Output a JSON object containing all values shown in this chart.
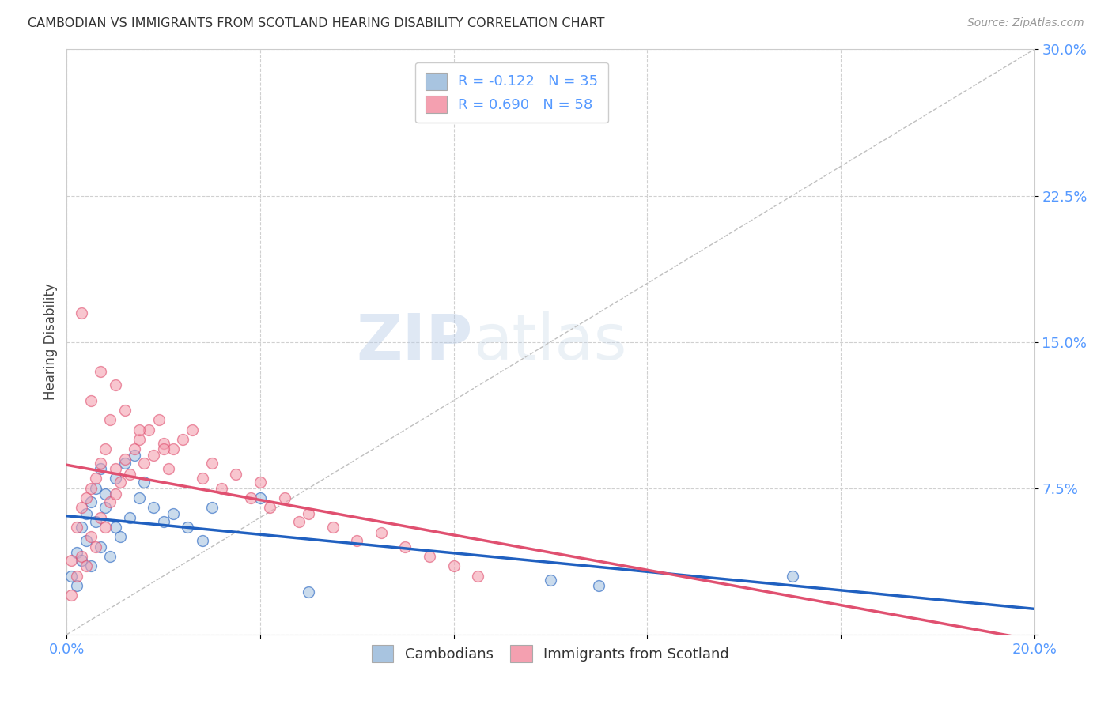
{
  "title": "CAMBODIAN VS IMMIGRANTS FROM SCOTLAND HEARING DISABILITY CORRELATION CHART",
  "source": "Source: ZipAtlas.com",
  "ylabel": "Hearing Disability",
  "xlim": [
    0.0,
    0.2
  ],
  "ylim": [
    0.0,
    0.3
  ],
  "xticks": [
    0.0,
    0.04,
    0.08,
    0.12,
    0.16,
    0.2
  ],
  "yticks": [
    0.0,
    0.075,
    0.15,
    0.225,
    0.3
  ],
  "ytick_labels": [
    "",
    "7.5%",
    "15.0%",
    "22.5%",
    "30.0%"
  ],
  "xtick_labels": [
    "0.0%",
    "",
    "",
    "",
    "",
    "20.0%"
  ],
  "series1_label": "Cambodians",
  "series2_label": "Immigrants from Scotland",
  "series1_R": -0.122,
  "series1_N": 35,
  "series2_R": 0.69,
  "series2_N": 58,
  "series1_color": "#a8c4e0",
  "series2_color": "#f4a0b0",
  "series1_line_color": "#2060c0",
  "series2_line_color": "#e05070",
  "diagonal_color": "#c0c0c0",
  "background_color": "#ffffff",
  "grid_color": "#d0d0d0",
  "watermark_zip": "ZIP",
  "watermark_atlas": "atlas",
  "series1_x": [
    0.001,
    0.002,
    0.002,
    0.003,
    0.003,
    0.004,
    0.004,
    0.005,
    0.005,
    0.006,
    0.006,
    0.007,
    0.007,
    0.008,
    0.008,
    0.009,
    0.01,
    0.01,
    0.011,
    0.012,
    0.013,
    0.014,
    0.015,
    0.016,
    0.018,
    0.02,
    0.022,
    0.025,
    0.028,
    0.03,
    0.04,
    0.05,
    0.1,
    0.15,
    0.11
  ],
  "series1_y": [
    0.03,
    0.025,
    0.042,
    0.038,
    0.055,
    0.048,
    0.062,
    0.035,
    0.068,
    0.058,
    0.075,
    0.045,
    0.085,
    0.065,
    0.072,
    0.04,
    0.08,
    0.055,
    0.05,
    0.088,
    0.06,
    0.092,
    0.07,
    0.078,
    0.065,
    0.058,
    0.062,
    0.055,
    0.048,
    0.065,
    0.07,
    0.022,
    0.028,
    0.03,
    0.025
  ],
  "series2_x": [
    0.001,
    0.001,
    0.002,
    0.002,
    0.003,
    0.003,
    0.004,
    0.004,
    0.005,
    0.005,
    0.006,
    0.006,
    0.007,
    0.007,
    0.008,
    0.008,
    0.009,
    0.01,
    0.01,
    0.011,
    0.012,
    0.013,
    0.014,
    0.015,
    0.016,
    0.017,
    0.018,
    0.019,
    0.02,
    0.021,
    0.022,
    0.024,
    0.026,
    0.028,
    0.03,
    0.032,
    0.035,
    0.038,
    0.04,
    0.042,
    0.045,
    0.048,
    0.05,
    0.055,
    0.06,
    0.065,
    0.07,
    0.075,
    0.08,
    0.085,
    0.003,
    0.005,
    0.007,
    0.009,
    0.01,
    0.012,
    0.015,
    0.02
  ],
  "series2_y": [
    0.02,
    0.038,
    0.03,
    0.055,
    0.04,
    0.065,
    0.035,
    0.07,
    0.05,
    0.075,
    0.045,
    0.08,
    0.06,
    0.088,
    0.055,
    0.095,
    0.068,
    0.072,
    0.085,
    0.078,
    0.09,
    0.082,
    0.095,
    0.1,
    0.088,
    0.105,
    0.092,
    0.11,
    0.098,
    0.085,
    0.095,
    0.1,
    0.105,
    0.08,
    0.088,
    0.075,
    0.082,
    0.07,
    0.078,
    0.065,
    0.07,
    0.058,
    0.062,
    0.055,
    0.048,
    0.052,
    0.045,
    0.04,
    0.035,
    0.03,
    0.165,
    0.12,
    0.135,
    0.11,
    0.128,
    0.115,
    0.105,
    0.095
  ]
}
